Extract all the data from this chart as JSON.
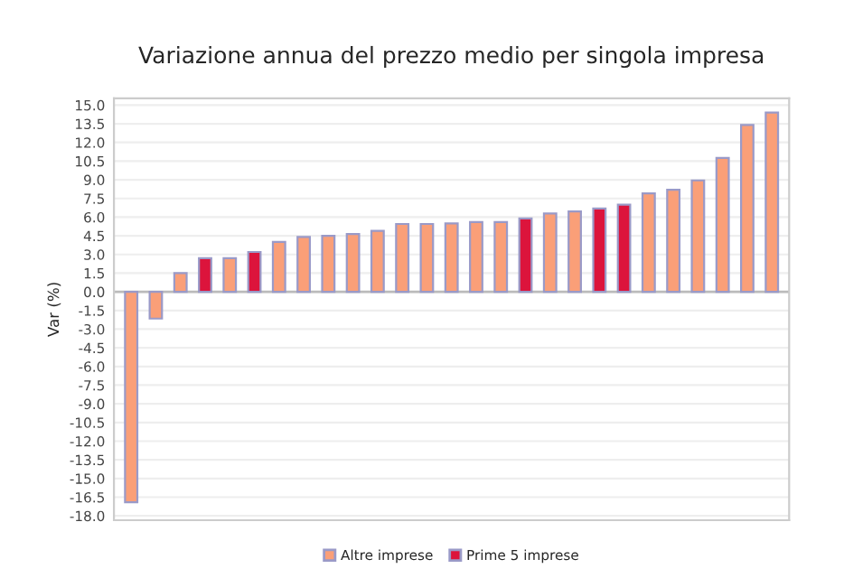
{
  "chart_data": {
    "type": "bar",
    "title": "Variazione annua del prezzo medio per singola impresa",
    "ylabel": "Var (%)",
    "categories": [
      null,
      null,
      null,
      null,
      null,
      null,
      null,
      null,
      null,
      null,
      null,
      null,
      null,
      null,
      null,
      null,
      null,
      null,
      null,
      null,
      null,
      null,
      null,
      null,
      null,
      null,
      null
    ],
    "series": [
      {
        "name": "Altre imprese",
        "color": "#fa9f78",
        "values": [
          -16.9,
          -2.15,
          1.5,
          null,
          2.7,
          null,
          4.0,
          4.4,
          4.5,
          4.65,
          4.9,
          5.45,
          5.45,
          5.5,
          5.6,
          5.6,
          null,
          6.3,
          6.45,
          null,
          null,
          7.9,
          8.2,
          8.95,
          10.75,
          13.4,
          14.4
        ]
      },
      {
        "name": "Prime 5 imprese",
        "color": "#dc143c",
        "values": [
          null,
          null,
          null,
          2.7,
          null,
          3.2,
          null,
          null,
          null,
          null,
          null,
          null,
          null,
          null,
          null,
          null,
          5.9,
          null,
          null,
          6.7,
          7.0,
          null,
          null,
          null,
          null,
          null,
          null
        ]
      }
    ],
    "ylim": [
      -18.35,
      15.55
    ],
    "yticks": [
      {
        "value": -18,
        "label": "-18.0"
      },
      {
        "value": -16.5,
        "label": "-16.5"
      },
      {
        "value": -15,
        "label": "-15.0"
      },
      {
        "value": -13.5,
        "label": "-13.5"
      },
      {
        "value": -12,
        "label": "-12.0"
      },
      {
        "value": -10.5,
        "label": "-10.5"
      },
      {
        "value": -9,
        "label": "-9.0"
      },
      {
        "value": -7.5,
        "label": "-7.5"
      },
      {
        "value": -6,
        "label": "-6.0"
      },
      {
        "value": -4.5,
        "label": "-4.5"
      },
      {
        "value": -3,
        "label": "-3.0"
      },
      {
        "value": -1.5,
        "label": "-1.5"
      },
      {
        "value": 0,
        "label": "0.0"
      },
      {
        "value": 1.5,
        "label": "1.5"
      },
      {
        "value": 3,
        "label": "3.0"
      },
      {
        "value": 4.5,
        "label": "4.5"
      },
      {
        "value": 6,
        "label": "6.0"
      },
      {
        "value": 7.5,
        "label": "7.5"
      },
      {
        "value": 9,
        "label": "9.0"
      },
      {
        "value": 10.5,
        "label": "10.5"
      },
      {
        "value": 12,
        "label": "12.0"
      },
      {
        "value": 13.5,
        "label": "13.5"
      },
      {
        "value": 15,
        "label": "15.0"
      }
    ],
    "grid": "y",
    "legend": "bottom"
  }
}
